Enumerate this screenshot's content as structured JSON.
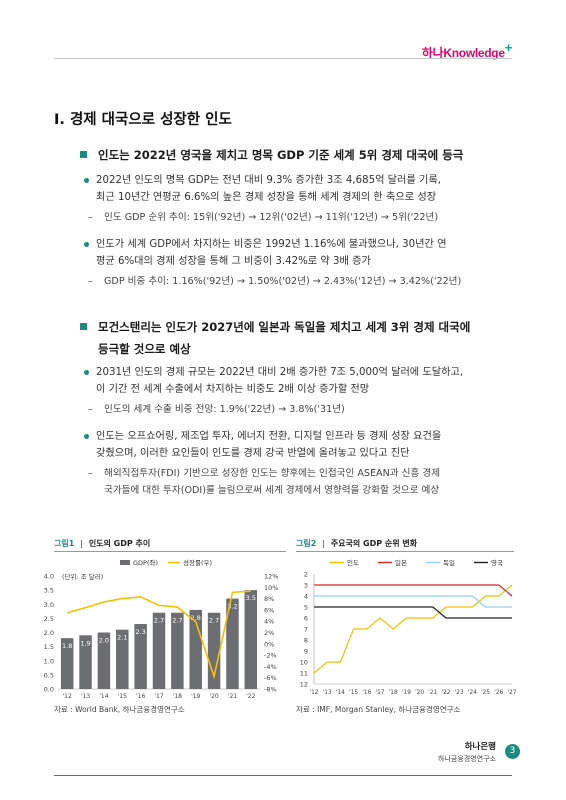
{
  "header": {
    "logo": "하나Knowledge",
    "logo_plus": "+"
  },
  "section_title": "I. 경제 대국으로 성장한 인도",
  "points": [
    {
      "heading": "인도는 2022년 영국을 제치고 명목 GDP 기준 세계 5위 경제 대국에 등극",
      "bullets": [
        {
          "text_l1": "2022년 인도의 명목 GDP는 전년 대비 9.3% 증가한 3조 4,685억 달러를 기록,",
          "text_l2": "최근 10년간 연평균 6.6%의 높은 경제 성장을 통해 세계 경제의 한 축으로 성장",
          "sub": "인도 GDP 순위 추이: 15위('92년) → 12위('02년) → 11위('12년) → 5위('22년)"
        },
        {
          "text_l1": "인도가 세계 GDP에서 차지하는 비중은 1992년 1.16%에 불과했으나, 30년간 연",
          "text_l2": "평균 6%대의 경제 성장을 통해 그 비중이 3.42%로 약 3배 증가",
          "sub": "GDP 비중 추이: 1.16%('92년) → 1.50%('02년) → 2.43%('12년) → 3.42%('22년)"
        }
      ]
    },
    {
      "heading_l1": "모건스탠리는 인도가 2027년에 일본과 독일을 제치고 세계 3위 경제 대국에",
      "heading_l2": "등극할 것으로 예상",
      "bullets": [
        {
          "text_l1": "2031년 인도의 경제 규모는 2022년 대비 2배 증가한 7조 5,000억 달러에 도달하고,",
          "text_l2": "이 기간 전 세계 수출에서 차지하는 비중도 2배 이상 증가할 전망",
          "sub": "인도의 세계 수출 비중 전망: 1.9%('22년) → 3.8%('31년)"
        },
        {
          "text_l1": "인도는 오프쇼어링, 제조업 투자, 에너지 전환, 디지털 인프라 등 경제 성장 요건을",
          "text_l2": "갖췄으며, 이러한 요인들이 인도를 경제 강국 반열에 올려놓고 있다고 진단",
          "sub_l1": "해외직접투자(FDI) 기반으로 성장한 인도는 향후에는 인접국인 ASEAN과 신흥 경제",
          "sub_l2": "국가들에 대한 투자(ODI)를 늘림으로써 세계 경제에서 영향력을 강화할 것으로 예상"
        }
      ]
    }
  ],
  "figure1": {
    "label": "그림1",
    "sep": "|",
    "title": "인도의 GDP 추이",
    "source": "자료 : World Bank, 하나금융경영연구소"
  },
  "figure2": {
    "label": "그림2",
    "sep": "|",
    "title": "주요국의 GDP 순위 변화",
    "source": "자료 : IMF, Morgan Stanley, 하나금융경영연구소"
  },
  "chart_data": [
    {
      "type": "bar",
      "annotation": "(단위: 조 달러)",
      "categories": [
        "'12",
        "'13",
        "'14",
        "'15",
        "'16",
        "'17",
        "'18",
        "'19",
        "'20",
        "'21",
        "'22"
      ],
      "x_tick_labels": [
        "'12",
        "'13",
        "'14",
        "'15",
        "'16",
        "'17",
        "'18",
        "'19",
        "'20",
        "'21",
        "'22"
      ],
      "series": [
        {
          "name": "GDP(좌)",
          "type": "bar",
          "color": "#6d6e71",
          "values": [
            1.8,
            1.9,
            2.0,
            2.1,
            2.3,
            2.7,
            2.7,
            2.8,
            2.7,
            3.2,
            3.5
          ],
          "labels": [
            "1.8",
            "1.9",
            "2.0",
            "2.1",
            "2.3",
            "2.7",
            "2.7",
            "2.8",
            "2.7",
            "3.2",
            "3.5"
          ]
        },
        {
          "name": "성장률(우)",
          "type": "line",
          "color": "#f2c100",
          "values": [
            5.5,
            6.4,
            7.4,
            8.0,
            8.3,
            6.8,
            6.5,
            3.9,
            -5.8,
            9.1,
            9.3
          ]
        }
      ],
      "ylim_left": [
        0,
        4.0
      ],
      "yticks_left": [
        "0.0",
        "0.5",
        "1.0",
        "1.5",
        "2.0",
        "2.5",
        "3.0",
        "3.5",
        "4.0"
      ],
      "ylim_right": [
        -8,
        12
      ],
      "yticks_right": [
        "-8%",
        "-6%",
        "-4%",
        "-2%",
        "0%",
        "2%",
        "4%",
        "6%",
        "8%",
        "10%",
        "12%"
      ],
      "legend": "top-center"
    },
    {
      "type": "line",
      "categories": [
        "'12",
        "'13",
        "'14",
        "'15",
        "'16",
        "'17",
        "'18",
        "'19",
        "'20",
        "'21",
        "'22",
        "'23",
        "'24",
        "'25",
        "'26",
        "'27"
      ],
      "x_tick_labels": [
        "'12",
        "'13",
        "'14",
        "'15",
        "'16",
        "'17",
        "'18",
        "'19",
        "'20",
        "'21",
        "'22",
        "'23",
        "'24",
        "'25",
        "'26",
        "'27"
      ],
      "y_reversed": true,
      "ylim": [
        2,
        12
      ],
      "yticks": [
        "2",
        "3",
        "4",
        "5",
        "6",
        "7",
        "8",
        "9",
        "10",
        "11",
        "12"
      ],
      "series": [
        {
          "name": "인도",
          "color": "#f2c100",
          "values": [
            11,
            10,
            10,
            7,
            7,
            6,
            7,
            6,
            6,
            6,
            5,
            5,
            5,
            4,
            4,
            3
          ]
        },
        {
          "name": "일본",
          "color": "#d7282f",
          "values": [
            3,
            3,
            3,
            3,
            3,
            3,
            3,
            3,
            3,
            3,
            3,
            3,
            3,
            3,
            3,
            4
          ]
        },
        {
          "name": "독일",
          "color": "#93d0e8",
          "values": [
            4,
            4,
            4,
            4,
            4,
            4,
            4,
            4,
            4,
            4,
            4,
            4,
            4,
            5,
            5,
            5
          ]
        },
        {
          "name": "영국",
          "color": "#222222",
          "values": [
            5,
            5,
            5,
            5,
            5,
            5,
            5,
            5,
            5,
            5,
            6,
            6,
            6,
            6,
            6,
            6
          ]
        }
      ],
      "legend": "top"
    }
  ],
  "footer": {
    "bank": "하나은행",
    "institute": "하나금융경영연구소",
    "page": "3"
  }
}
